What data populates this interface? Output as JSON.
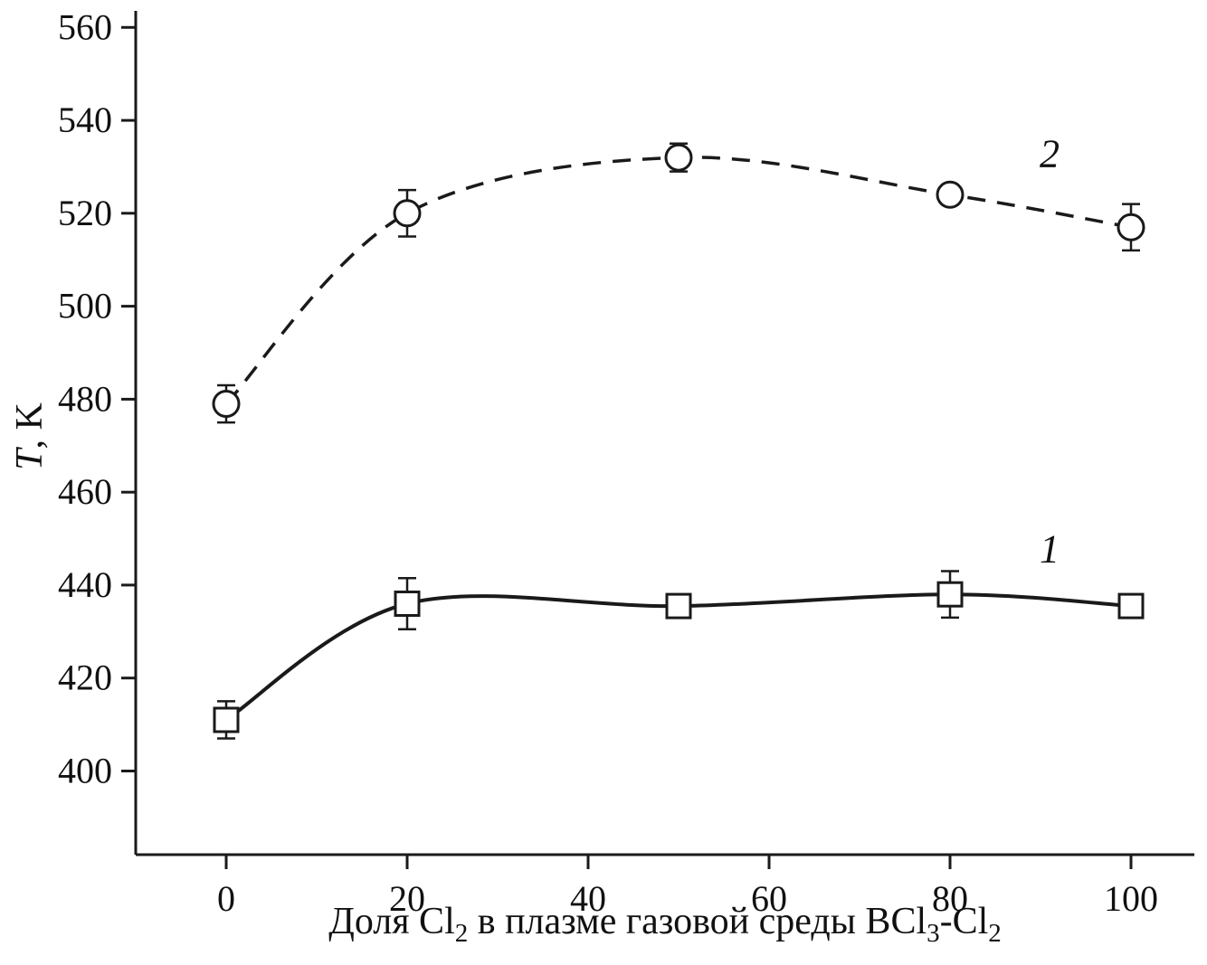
{
  "figure": {
    "background": "#ffffff",
    "ink_color": "#1a1a1a"
  },
  "chart_data": {
    "type": "line",
    "title": "",
    "xlabel_segments": [
      {
        "text": "Доля Cl"
      },
      {
        "text": "2",
        "sub": true
      },
      {
        "text": " в плазме газовой среды BCl"
      },
      {
        "text": "3",
        "sub": true
      },
      {
        "text": "-Cl"
      },
      {
        "text": "2",
        "sub": true
      }
    ],
    "ylabel_segments": [
      {
        "text": "T",
        "italic": true
      },
      {
        "text": ", K"
      }
    ],
    "xlim": [
      -10,
      107
    ],
    "ylim": [
      382,
      562
    ],
    "xticks": [
      0,
      20,
      40,
      60,
      80,
      100
    ],
    "yticks": [
      400,
      420,
      440,
      460,
      480,
      500,
      520,
      540,
      560
    ],
    "grid": false,
    "legend": "none",
    "line_color": "#1a1a1a",
    "marker_fill": "#ffffff",
    "series": [
      {
        "name": "1",
        "label": "1",
        "marker": "square",
        "line_style": "solid",
        "x": [
          0,
          20,
          50,
          80,
          100
        ],
        "y": [
          411,
          436,
          435.5,
          438,
          435.5
        ],
        "yerr": [
          4,
          5.5,
          0,
          5,
          0
        ],
        "label_pos": {
          "x": 91,
          "y": 445
        }
      },
      {
        "name": "2",
        "label": "2",
        "marker": "circle",
        "line_style": "dashed",
        "x": [
          0,
          20,
          50,
          80,
          100
        ],
        "y": [
          479,
          520,
          532,
          524,
          517
        ],
        "yerr": [
          4,
          5,
          3,
          0,
          5
        ],
        "label_pos": {
          "x": 91,
          "y": 530
        }
      }
    ]
  }
}
